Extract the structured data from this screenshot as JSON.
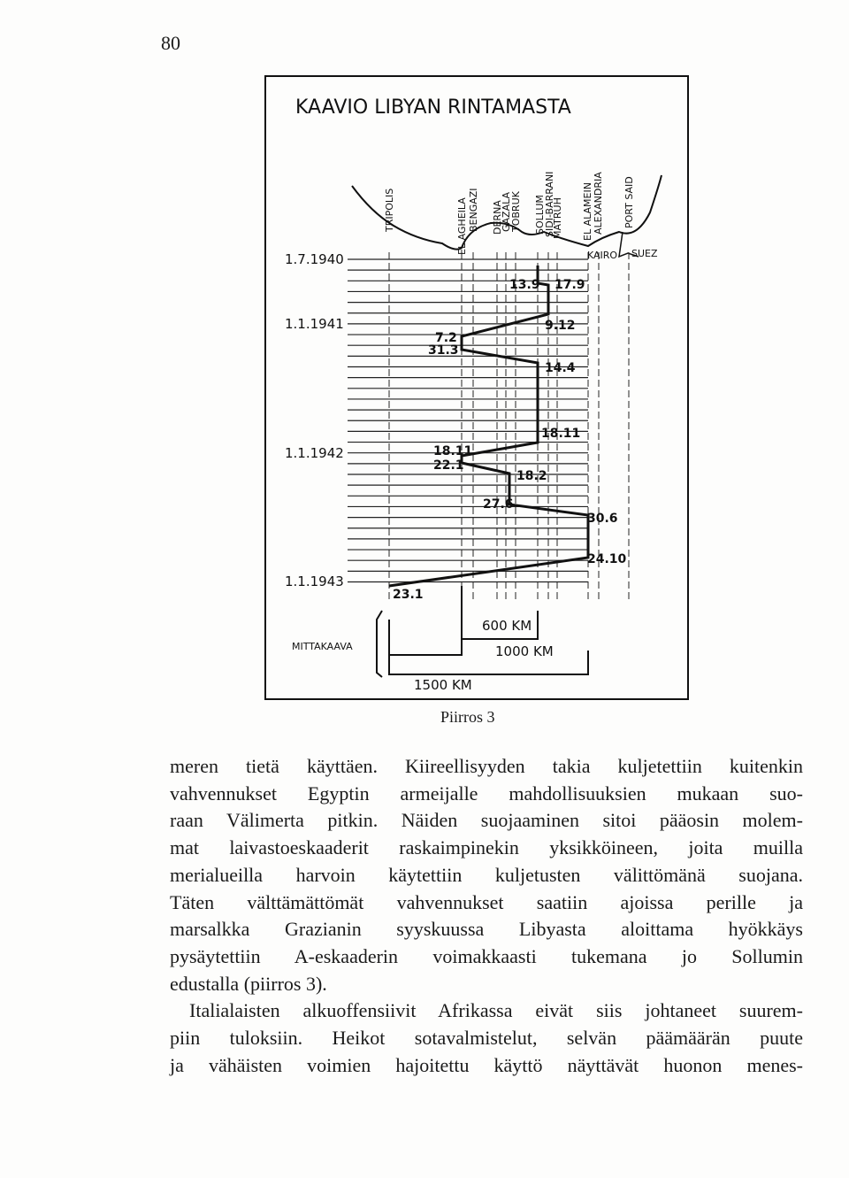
{
  "page_number": "80",
  "figure": {
    "title": "KAAVIO LIBYAN RINTAMASTA",
    "places": [
      "TRIPOLIS",
      "EL AGHEILA",
      "BENGAZI",
      "DERNA",
      "GAZALA",
      "TOBRUK",
      "SOLLUM",
      "SIDI-BARRANI",
      "MATRUH",
      "EL ALAMEIN",
      "ALEXANDRIA",
      "PORT SAID",
      "KAIRO",
      "SUEZ"
    ],
    "dates": [
      "1.7.1940",
      "1.1.1941",
      "1.1.1942",
      "1.1.1943"
    ],
    "events": [
      "13.9",
      "17.9",
      "9.12",
      "7.2",
      "31.3",
      "14.4",
      "18.11",
      "18.11",
      "22.1",
      "18.2",
      "27.6",
      "30.6",
      "24.10",
      "23.1"
    ],
    "scale": {
      "label": "MITTAKAAVA",
      "distances": [
        "600 KM",
        "1000 KM",
        "1500 KM"
      ]
    },
    "caption": "Piirros 3"
  },
  "body": {
    "lines": [
      "meren tietä käyttäen. Kiireellisyyden takia kuljetettiin kuitenkin",
      "vahvennukset Egyptin armeijalle mahdollisuuksien mukaan suo-",
      "raan Välimerta pitkin. Näiden suojaaminen sitoi pääosin molem-",
      "mat laivastoeskaaderit raskaimpinekin yksikköineen, joita muilla",
      "merialueilla harvoin käytettiin kuljetusten välittömänä suojana.",
      "Täten välttämättömät vahvennukset saatiin ajoissa perille ja",
      "marsalkka Grazianin syyskuussa Libyasta aloittama hyökkäys",
      "pysäytettiin A-eskaaderin voimakkaasti tukemana jo Sollumin",
      "edustalla (piirros 3).",
      "Italialaisten alkuoffensiivit Afrikassa eivät siis johtaneet suurem-",
      "piin tuloksiin. Heikot sotavalmistelut, selvän päämäärän puute",
      "ja vähäisten voimien hajoitettu käyttö näyttävät huonon menes-"
    ]
  }
}
